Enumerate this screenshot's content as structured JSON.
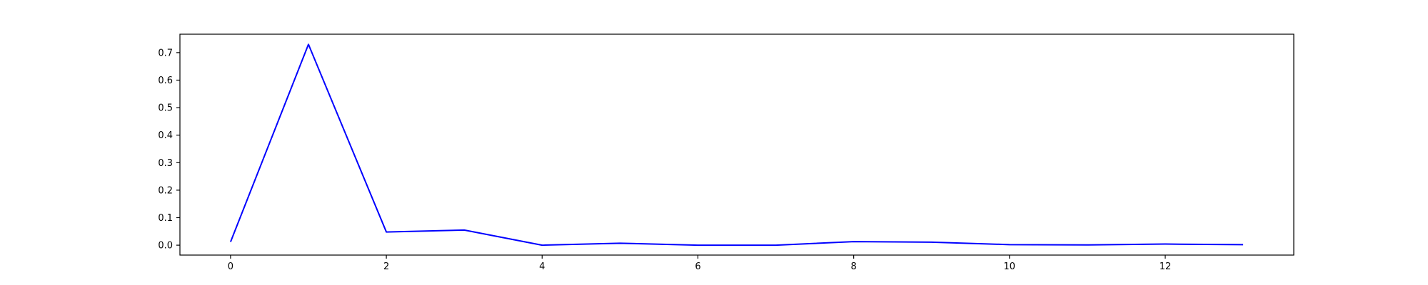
{
  "chart_data": {
    "type": "line",
    "title": "",
    "xlabel": "",
    "ylabel": "",
    "xlim": [
      -0.65,
      13.65
    ],
    "ylim": [
      -0.036,
      0.767
    ],
    "x_ticks": [
      0,
      2,
      4,
      6,
      8,
      10,
      12
    ],
    "y_ticks": [
      0.0,
      0.1,
      0.2,
      0.3,
      0.4,
      0.5,
      0.6,
      0.7
    ],
    "x_tick_labels": [
      "0",
      "2",
      "4",
      "6",
      "8",
      "10",
      "12"
    ],
    "y_tick_labels": [
      "0.0",
      "0.1",
      "0.2",
      "0.3",
      "0.4",
      "0.5",
      "0.6",
      "0.7"
    ],
    "grid": false,
    "legend": "none",
    "series": [
      {
        "color": "#0000ff",
        "x": [
          0,
          1,
          2,
          3,
          4,
          5,
          6,
          7,
          8,
          9,
          10,
          11,
          12,
          13
        ],
        "values": [
          0.012,
          0.73,
          0.048,
          0.055,
          0.0,
          0.007,
          0.0,
          0.0,
          0.013,
          0.011,
          0.002,
          0.001,
          0.004,
          0.002
        ]
      }
    ]
  }
}
